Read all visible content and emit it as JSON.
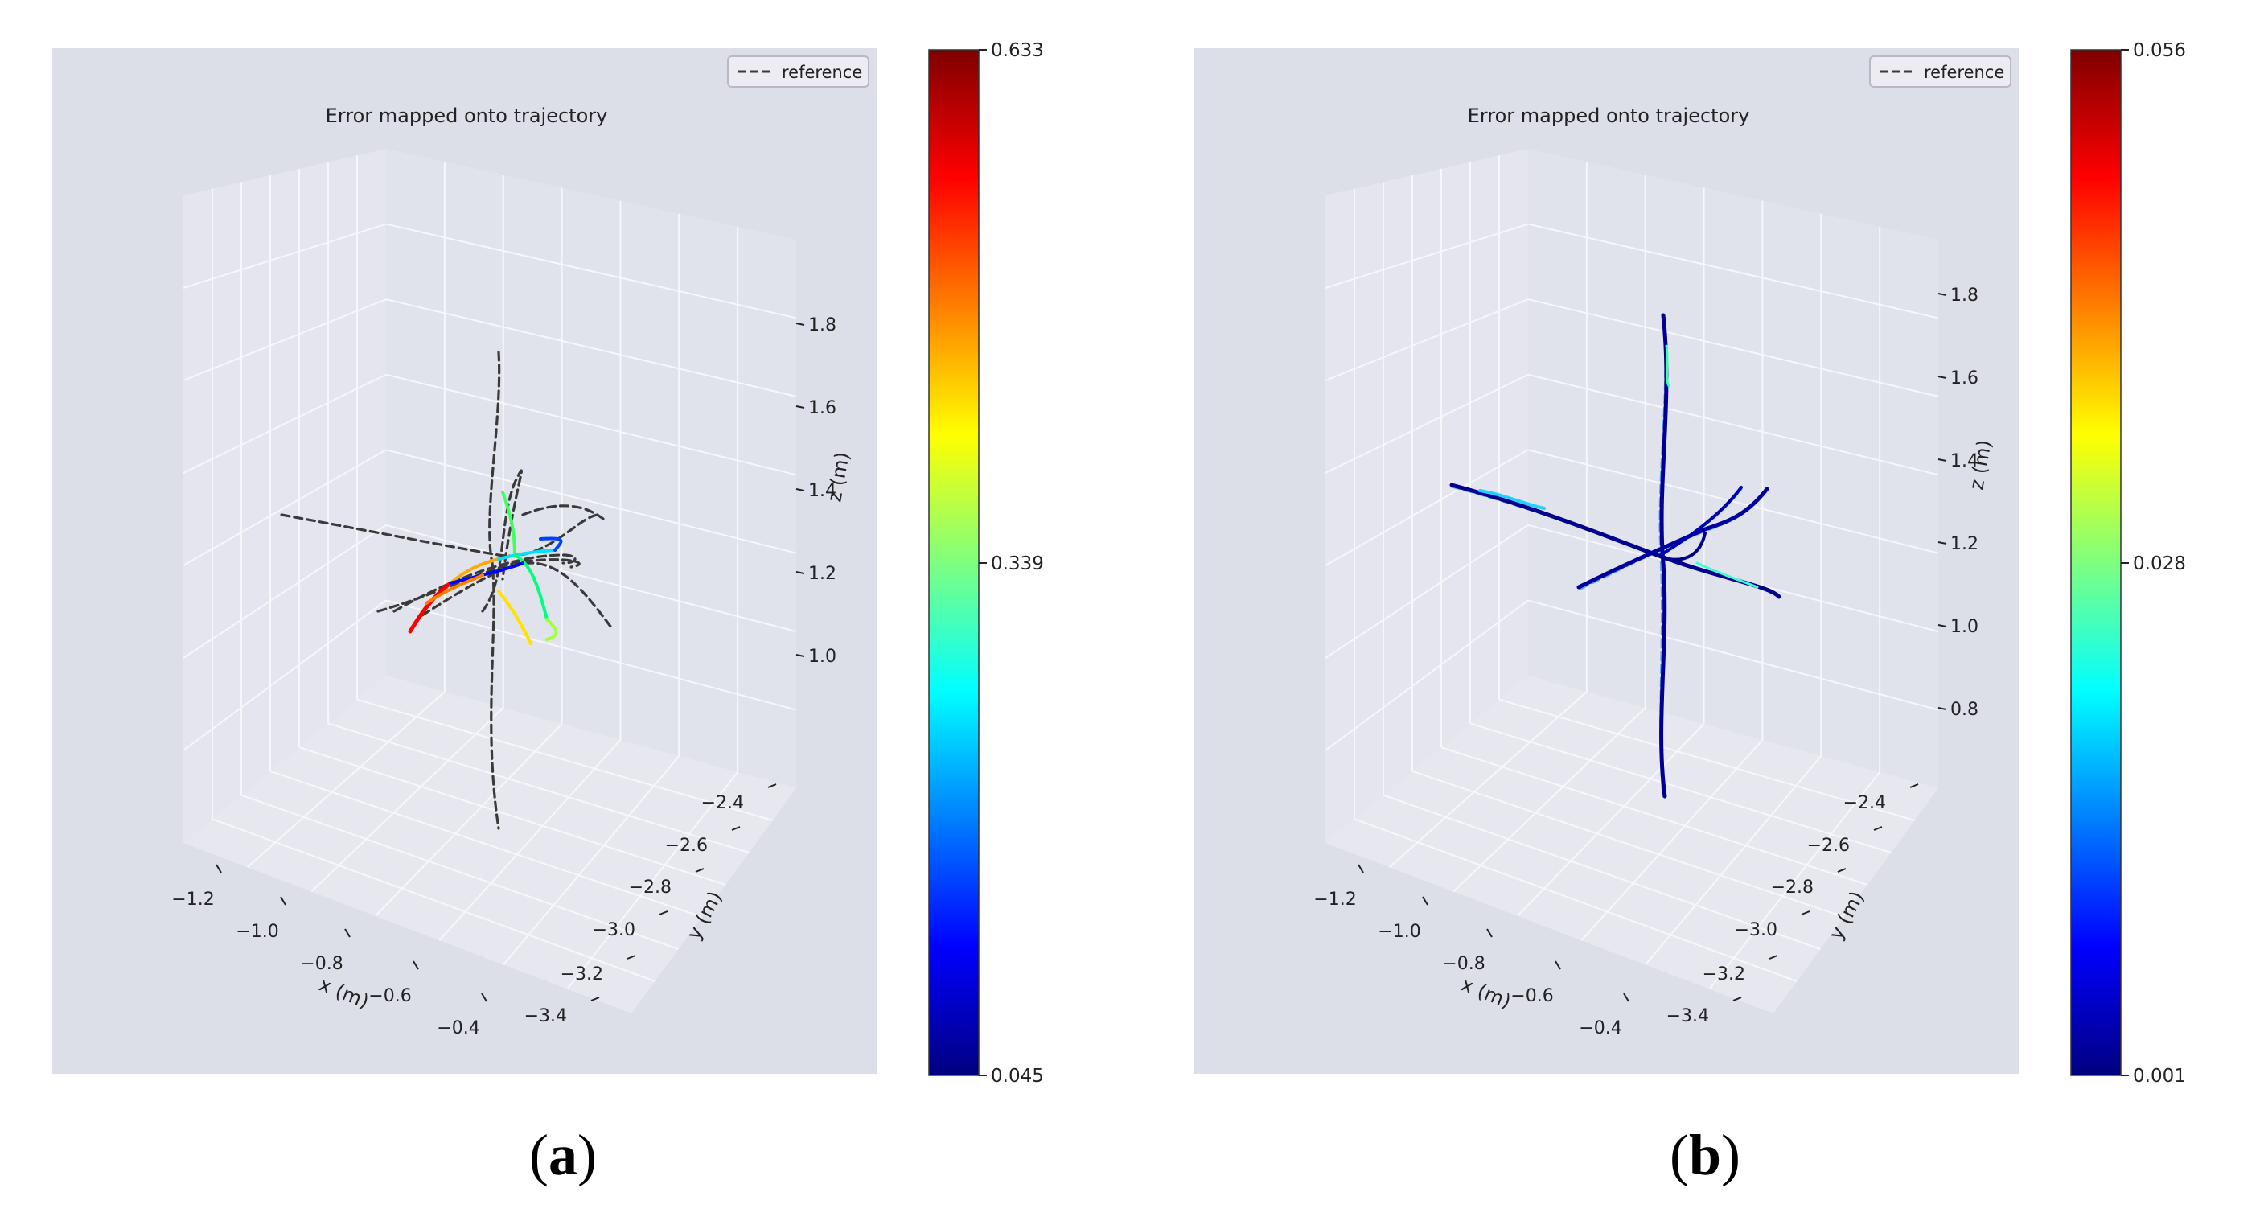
{
  "figure": {
    "panels": [
      {
        "label_open": "(",
        "label_letter": "a",
        "label_close": ")"
      },
      {
        "label_open": "(",
        "label_letter": "b",
        "label_close": ")"
      }
    ]
  },
  "colors": {
    "pane_bg": "#dcdee8",
    "grid": "#f6f7fb",
    "reference": "#3a3a3a",
    "cmap": [
      "#00007f",
      "#0000ff",
      "#007fff",
      "#00ffff",
      "#7fff7f",
      "#ffff00",
      "#ff7f00",
      "#ff0000",
      "#7f0000"
    ]
  },
  "chart_data": [
    {
      "type": "3d-trajectory",
      "title": "Error mapped onto trajectory",
      "legend": {
        "label": "reference",
        "style": "dashed",
        "placement": "top-right"
      },
      "xlabel": "x (m)",
      "ylabel": "y (m)",
      "zlabel": "z (m)",
      "xticks": [
        "−1.2",
        "−1.0",
        "−0.8",
        "−0.6",
        "−0.4"
      ],
      "yticks": [
        "−2.4",
        "−2.6",
        "−2.8",
        "−3.0",
        "−3.2",
        "−3.4"
      ],
      "zticks": [
        "1.8",
        "1.6",
        "1.4",
        "1.2",
        "1.0"
      ],
      "colorbar": {
        "min": 0.045,
        "mid": 0.339,
        "max": 0.633,
        "labels": [
          "0.633",
          "0.339",
          "0.045"
        ]
      },
      "error_profile": "concentrated near center with high-error (red/orange) tails",
      "grid": true
    },
    {
      "type": "3d-trajectory",
      "title": "Error mapped onto trajectory",
      "legend": {
        "label": "reference",
        "style": "dashed",
        "placement": "top-right"
      },
      "xlabel": "x (m)",
      "ylabel": "y (m)",
      "zlabel": "z (m)",
      "xticks": [
        "−1.2",
        "−1.0",
        "−0.8",
        "−0.6",
        "−0.4"
      ],
      "yticks": [
        "−2.4",
        "−2.6",
        "−2.8",
        "−3.0",
        "−3.2",
        "−3.4"
      ],
      "zticks": [
        "1.8",
        "1.6",
        "1.4",
        "1.2",
        "1.0",
        "0.8"
      ],
      "colorbar": {
        "min": 0.001,
        "mid": 0.028,
        "max": 0.056,
        "labels": [
          "0.056",
          "0.028",
          "0.001"
        ]
      },
      "error_profile": "mostly low error (dark blue) closely following reference",
      "grid": true
    }
  ]
}
